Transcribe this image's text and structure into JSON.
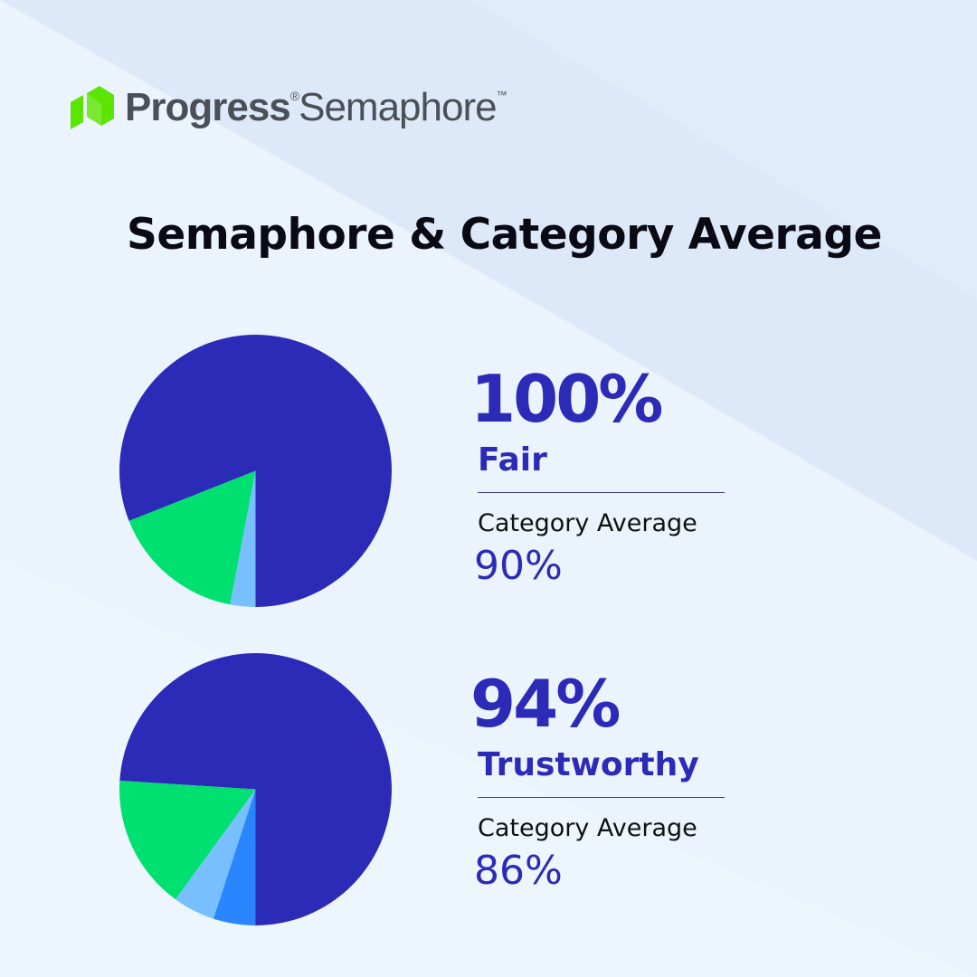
{
  "brand": {
    "name": "Progress",
    "product": "Semaphore",
    "reg_mark": "®",
    "tm_mark": "™"
  },
  "colors": {
    "brand_green": "#5ce500",
    "primary": "#2b2bb8",
    "slice_green": "#00e070",
    "slice_light_blue": "#78bfff",
    "slice_mid_blue": "#2a86ff"
  },
  "title": "Semaphore & Category Average",
  "chart_data": [
    {
      "type": "pie",
      "slices": [
        {
          "value": 81,
          "color": "#2b2bb8"
        },
        {
          "value": 16,
          "color": "#00e070"
        },
        {
          "value": 3,
          "color": "#78bfff"
        }
      ],
      "headline": "100%",
      "label": "Fair",
      "category_label": "Category Average",
      "category_value": "90%"
    },
    {
      "type": "pie",
      "slices": [
        {
          "value": 74,
          "color": "#2b2bb8"
        },
        {
          "value": 16,
          "color": "#00e070"
        },
        {
          "value": 5,
          "color": "#78bfff"
        },
        {
          "value": 5,
          "color": "#2a86ff"
        }
      ],
      "headline": "94%",
      "label": "Trustworthy",
      "category_label": "Category Average",
      "category_value": "86%"
    }
  ]
}
